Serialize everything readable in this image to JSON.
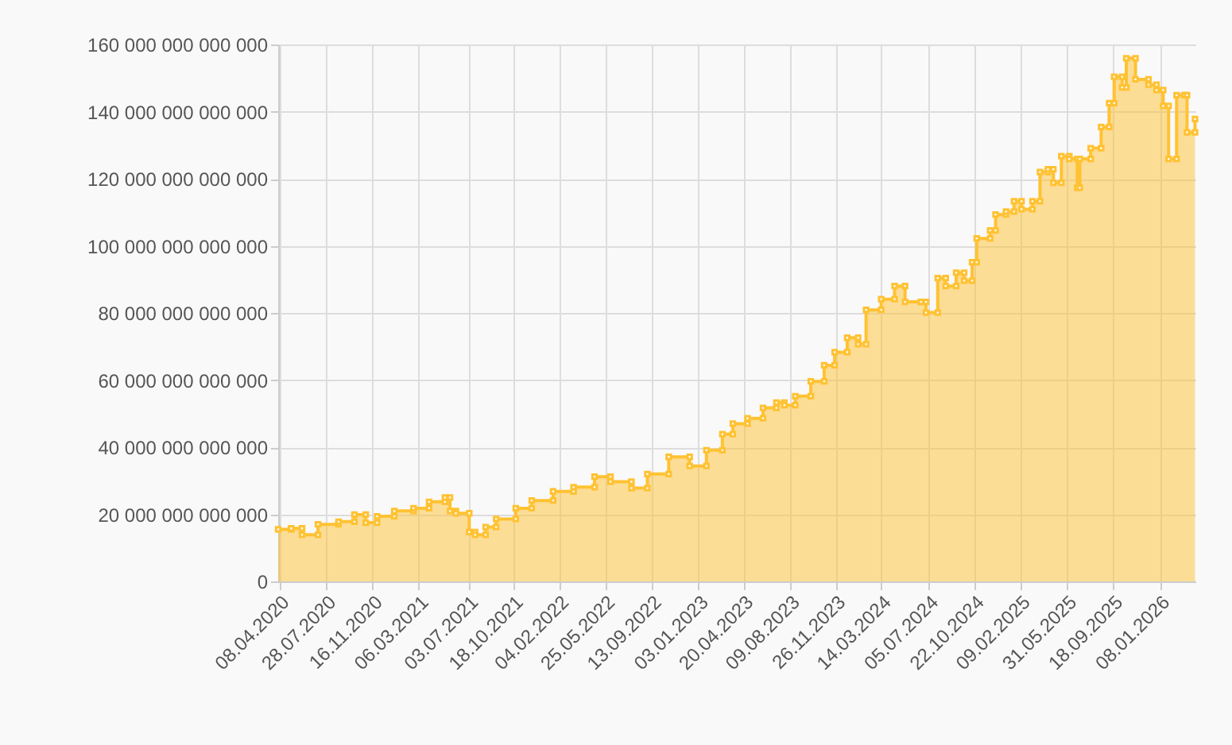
{
  "chart_data": {
    "type": "area",
    "series": [
      {
        "color": "#ffc233",
        "x": [
          "2020-04-05",
          "2020-05-06",
          "2020-05-06",
          "2020-06-01",
          "2020-06-01",
          "2020-07-09",
          "2020-07-09",
          "2020-08-27",
          "2020-08-27",
          "2020-10-04",
          "2020-10-04",
          "2020-10-31",
          "2020-10-31",
          "2020-11-27",
          "2020-11-27",
          "2021-01-07",
          "2021-01-07",
          "2021-02-22",
          "2021-02-22",
          "2021-03-31",
          "2021-03-31",
          "2021-05-08",
          "2021-05-08",
          "2021-05-20",
          "2021-05-20",
          "2021-06-03",
          "2021-06-03",
          "2021-07-05",
          "2021-07-05",
          "2021-07-19",
          "2021-07-19",
          "2021-08-13",
          "2021-08-13",
          "2021-09-07",
          "2021-09-07",
          "2021-10-24",
          "2021-10-24",
          "2021-12-01",
          "2021-12-01",
          "2022-01-21",
          "2022-01-21",
          "2022-03-11",
          "2022-03-11",
          "2022-04-30",
          "2022-04-30",
          "2022-06-07",
          "2022-06-07",
          "2022-07-27",
          "2022-07-27",
          "2022-09-03",
          "2022-09-03",
          "2022-10-24",
          "2022-10-24",
          "2022-12-13",
          "2022-12-13",
          "2023-01-22",
          "2023-01-22",
          "2023-03-01",
          "2023-03-01",
          "2023-03-26",
          "2023-03-26",
          "2023-04-30",
          "2023-04-30",
          "2023-06-06",
          "2023-06-06",
          "2023-07-08",
          "2023-07-08",
          "2023-07-27",
          "2023-07-27",
          "2023-08-22",
          "2023-08-22",
          "2023-09-28",
          "2023-09-28",
          "2023-10-30",
          "2023-10-30",
          "2023-11-24",
          "2023-11-24",
          "2023-12-24",
          "2023-12-24",
          "2024-01-19",
          "2024-01-19",
          "2024-02-07",
          "2024-02-07",
          "2024-03-14",
          "2024-03-14",
          "2024-04-15",
          "2024-04-15",
          "2024-05-10",
          "2024-05-10",
          "2024-06-17",
          "2024-06-17",
          "2024-06-29",
          "2024-06-29",
          "2024-07-27",
          "2024-07-27",
          "2024-08-15",
          "2024-08-15",
          "2024-09-09",
          "2024-09-09",
          "2024-09-28",
          "2024-09-28",
          "2024-10-17",
          "2024-10-17",
          "2024-10-28",
          "2024-10-28",
          "2024-11-29",
          "2024-11-29",
          "2024-12-12",
          "2024-12-12",
          "2025-01-06",
          "2025-01-06",
          "2025-01-25",
          "2025-01-25",
          "2025-02-12",
          "2025-02-12",
          "2025-03-10",
          "2025-03-10",
          "2025-03-28",
          "2025-03-28",
          "2025-04-16",
          "2025-04-16",
          "2025-04-29",
          "2025-04-29",
          "2025-05-18",
          "2025-05-18",
          "2025-06-06",
          "2025-06-06",
          "2025-06-25",
          "2025-06-25",
          "2025-07-01",
          "2025-07-01",
          "2025-07-27",
          "2025-07-27",
          "2025-08-21",
          "2025-08-21",
          "2025-09-09",
          "2025-09-09",
          "2025-09-21",
          "2025-09-21",
          "2025-10-10",
          "2025-10-10",
          "2025-10-20",
          "2025-10-20",
          "2025-11-11",
          "2025-11-11",
          "2025-12-12",
          "2025-12-12",
          "2025-12-31",
          "2025-12-31",
          "2026-01-16",
          "2026-01-16",
          "2026-01-29",
          "2026-01-29",
          "2026-02-17",
          "2026-02-17",
          "2026-03-08",
          "2026-03-08",
          "2026-03-14",
          "2026-03-14",
          "2026-04-02",
          "2026-04-02"
        ],
        "values": [
          15500000000000.0,
          15500000000000.0,
          15800000000000.0,
          15800000000000.0,
          13900000000000.0,
          13900000000000.0,
          17000000000000.0,
          17000000000000.0,
          17800000000000.0,
          17800000000000.0,
          19900000000000.0,
          19900000000000.0,
          17500000000000.0,
          17500000000000.0,
          19400000000000.0,
          19400000000000.0,
          21000000000000.0,
          21000000000000.0,
          21800000000000.0,
          21800000000000.0,
          23700000000000.0,
          23700000000000.0,
          25000000000000.0,
          25000000000000.0,
          21000000000000.0,
          21000000000000.0,
          20300000000000.0,
          20300000000000.0,
          14700000000000.0,
          14700000000000.0,
          13900000000000.0,
          13900000000000.0,
          16200000000000.0,
          16200000000000.0,
          18600000000000.0,
          18600000000000.0,
          21800000000000.0,
          21800000000000.0,
          24100000000000.0,
          24100000000000.0,
          26800000000000.0,
          26800000000000.0,
          28100000000000.0,
          28100000000000.0,
          31200000000000.0,
          31200000000000.0,
          29700000000000.0,
          29700000000000.0,
          27800000000000.0,
          27800000000000.0,
          32000000000000.0,
          32000000000000.0,
          37100000000000.0,
          37100000000000.0,
          34400000000000.0,
          34400000000000.0,
          39100000000000.0,
          39100000000000.0,
          43900000000000.0,
          43900000000000.0,
          47000000000000.0,
          47000000000000.0,
          48600000000000.0,
          48600000000000.0,
          51700000000000.0,
          51700000000000.0,
          53300000000000.0,
          53300000000000.0,
          52500000000000.0,
          52500000000000.0,
          55200000000000.0,
          55200000000000.0,
          59600000000000.0,
          59600000000000.0,
          64400000000000.0,
          64400000000000.0,
          68300000000000.0,
          68300000000000.0,
          72600000000000.0,
          72600000000000.0,
          70700000000000.0,
          70700000000000.0,
          80900000000000.0,
          80900000000000.0,
          84100000000000.0,
          84100000000000.0,
          88000000000000.0,
          88000000000000.0,
          83300000000000.0,
          83300000000000.0,
          83300000000000.0,
          83300000000000.0,
          80100000000000.0,
          80100000000000.0,
          90400000000000.0,
          90400000000000.0,
          88000000000000.0,
          88000000000000.0,
          92000000000000.0,
          92000000000000.0,
          89600000000000.0,
          89600000000000.0,
          95100000000000.0,
          95100000000000.0,
          102200000000000.0,
          102200000000000.0,
          104600000000000.0,
          104600000000000.0,
          109300000000000.0,
          109300000000000.0,
          110200000000000.0,
          110200000000000.0,
          113300000000000.0,
          113300000000000.0,
          110900000000000.0,
          110900000000000.0,
          113300000000000.0,
          113300000000000.0,
          122000000000000.0,
          122000000000000.0,
          122800000000000.0,
          122800000000000.0,
          118800000000000.0,
          118800000000000.0,
          126700000000000.0,
          126700000000000.0,
          125900000000000.0,
          125900000000000.0,
          117300000000000.0,
          117300000000000.0,
          125900000000000.0,
          125900000000000.0,
          129100000000000.0,
          129100000000000.0,
          135400000000000.0,
          135400000000000.0,
          142500000000000.0,
          142500000000000.0,
          150400000000000.0,
          150400000000000.0,
          147200000000000.0,
          147200000000000.0,
          155900000000000.0,
          155900000000000.0,
          149600000000000.0,
          149600000000000.0,
          148000000000000.0,
          148000000000000.0,
          146400000000000.0,
          146400000000000.0,
          141700000000000.0,
          141700000000000.0,
          125900000000000.0,
          125900000000000.0,
          144900000000000.0,
          144900000000000.0,
          144900000000000.0,
          144900000000000.0,
          133800000000000.0,
          133800000000000.0,
          137800000000000.0
        ]
      }
    ],
    "xlim": [
      "2020-04-05",
      "2026-04-03"
    ],
    "xticks": [
      {
        "value": "2020-04-08",
        "label": "08.04.2020"
      },
      {
        "value": "2020-07-28",
        "label": "28.07.2020"
      },
      {
        "value": "2020-11-16",
        "label": "16.11.2020"
      },
      {
        "value": "2021-03-06",
        "label": "06.03.2021"
      },
      {
        "value": "2021-07-03",
        "label": "03.07.2021"
      },
      {
        "value": "2021-10-18",
        "label": "18.10.2021"
      },
      {
        "value": "2022-02-04",
        "label": "04.02.2022"
      },
      {
        "value": "2022-05-25",
        "label": "25.05.2022"
      },
      {
        "value": "2022-09-13",
        "label": "13.09.2022"
      },
      {
        "value": "2023-01-03",
        "label": "03.01.2023"
      },
      {
        "value": "2023-04-20",
        "label": "20.04.2023"
      },
      {
        "value": "2023-08-09",
        "label": "09.08.2023"
      },
      {
        "value": "2023-11-26",
        "label": "26.11.2023"
      },
      {
        "value": "2024-03-14",
        "label": "14.03.2024"
      },
      {
        "value": "2024-07-05",
        "label": "05.07.2024"
      },
      {
        "value": "2024-10-22",
        "label": "22.10.2024"
      },
      {
        "value": "2025-02-09",
        "label": "09.02.2025"
      },
      {
        "value": "2025-05-31",
        "label": "31.05.2025"
      },
      {
        "value": "2025-09-18",
        "label": "18.09.2025"
      },
      {
        "value": "2026-01-08",
        "label": "08.01.2026"
      }
    ],
    "ylim": [
      0,
      160000000000000
    ],
    "yticks": [
      {
        "value": 0,
        "label": "0"
      },
      {
        "value": 20000000000000,
        "label": "20 000 000 000 000"
      },
      {
        "value": 40000000000000,
        "label": "40 000 000 000 000"
      },
      {
        "value": 60000000000000,
        "label": "60 000 000 000 000"
      },
      {
        "value": 80000000000000,
        "label": "80 000 000 000 000"
      },
      {
        "value": 100000000000000,
        "label": "100 000 000 000 000"
      },
      {
        "value": 120000000000000,
        "label": "120 000 000 000 000"
      },
      {
        "value": 140000000000000,
        "label": "140 000 000 000 000"
      },
      {
        "value": 160000000000000,
        "label": "160 000 000 000 000"
      }
    ],
    "grid": true,
    "marker": "square"
  }
}
